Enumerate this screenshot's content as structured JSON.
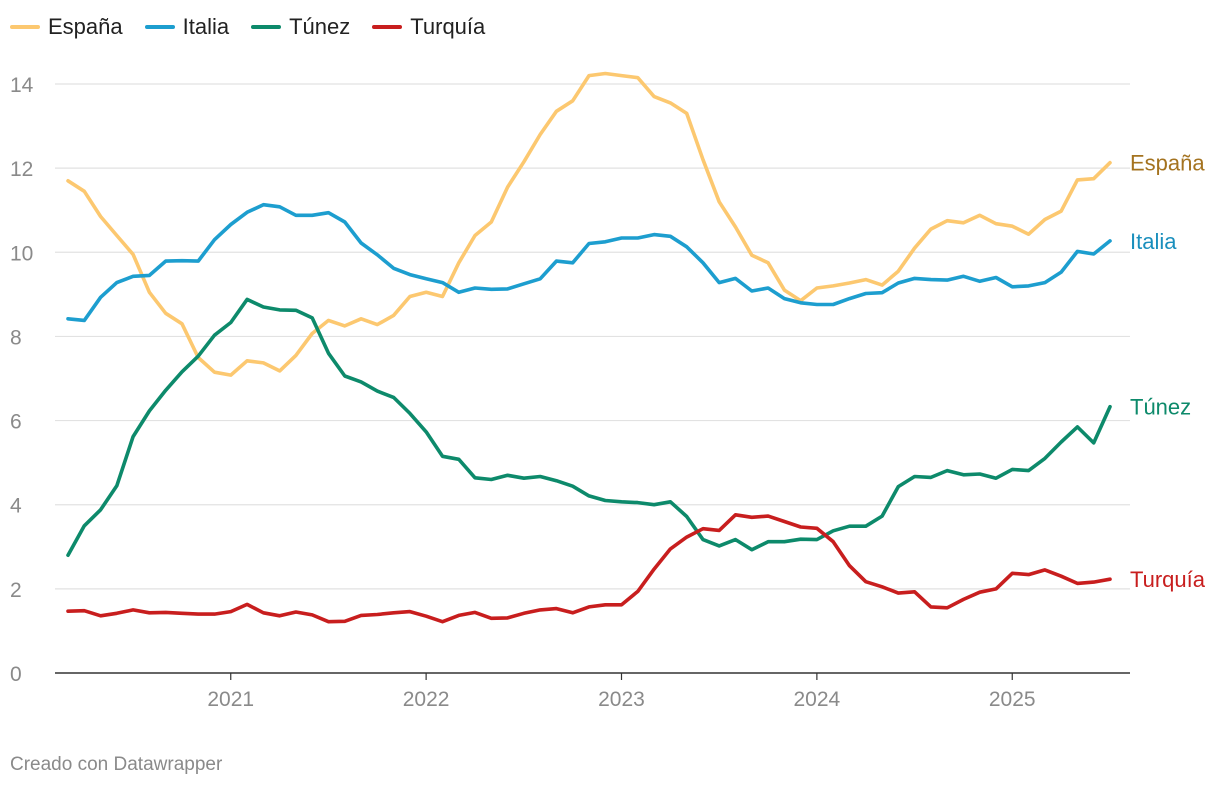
{
  "chart_data": {
    "type": "line",
    "title": "",
    "xlabel": "",
    "ylabel": "",
    "ylim": [
      0,
      14
    ],
    "y_ticks": [
      0,
      2,
      4,
      6,
      8,
      10,
      12,
      14
    ],
    "y_tick_labels": [
      "0",
      "2",
      "4",
      "6",
      "8",
      "10",
      "12",
      "14"
    ],
    "x_ticks": [
      {
        "label": "2021",
        "value": 2021.0
      },
      {
        "label": "2022",
        "value": 2022.0
      },
      {
        "label": "2023",
        "value": 2023.0
      },
      {
        "label": "2024",
        "value": 2024.0
      },
      {
        "label": "2025",
        "value": 2025.0
      }
    ],
    "x_start": 2020.167,
    "x_step": 0.0833333,
    "grid": true,
    "legend_position": "top-left",
    "series": [
      {
        "name": "España",
        "color": "#fcc870",
        "label_color": "#a47320",
        "end_label": "España",
        "values": [
          11.7,
          11.45,
          10.85,
          10.4,
          9.95,
          9.05,
          8.55,
          8.3,
          7.5,
          7.15,
          7.08,
          7.42,
          7.37,
          7.18,
          7.55,
          8.07,
          8.38,
          8.25,
          8.42,
          8.28,
          8.5,
          8.95,
          9.05,
          8.95,
          9.75,
          10.4,
          10.72,
          11.55,
          12.15,
          12.8,
          13.35,
          13.6,
          14.2,
          14.25,
          14.2,
          14.15,
          13.7,
          13.55,
          13.3,
          12.2,
          11.2,
          10.6,
          9.93,
          9.75,
          9.1,
          8.85,
          9.15,
          9.2,
          9.27,
          9.35,
          9.22,
          9.55,
          10.1,
          10.55,
          10.75,
          10.7,
          10.88,
          10.68,
          10.62,
          10.43,
          10.78,
          10.98,
          11.72,
          11.75,
          12.13
        ]
      },
      {
        "name": "Italia",
        "color": "#1d9ecf",
        "label_color": "#1a8fbd",
        "end_label": "Italia",
        "values": [
          8.42,
          8.38,
          8.93,
          9.28,
          9.43,
          9.45,
          9.79,
          9.8,
          9.79,
          10.3,
          10.66,
          10.95,
          11.13,
          11.08,
          10.88,
          10.88,
          10.94,
          10.72,
          10.22,
          9.94,
          9.62,
          9.47,
          9.37,
          9.28,
          9.05,
          9.15,
          9.12,
          9.13,
          9.25,
          9.37,
          9.79,
          9.75,
          10.21,
          10.25,
          10.34,
          10.34,
          10.42,
          10.38,
          10.13,
          9.75,
          9.28,
          9.38,
          9.08,
          9.15,
          8.9,
          8.8,
          8.76,
          8.76,
          8.9,
          9.02,
          9.04,
          9.27,
          9.38,
          9.35,
          9.34,
          9.43,
          9.31,
          9.4,
          9.18,
          9.2,
          9.28,
          9.53,
          10.02,
          9.96,
          10.27
        ]
      },
      {
        "name": "Túnez",
        "color": "#0d8a6b",
        "label_color": "#0d8a6b",
        "end_label": "Túnez",
        "values": [
          2.8,
          3.5,
          3.88,
          4.45,
          5.62,
          6.23,
          6.72,
          7.16,
          7.53,
          8.03,
          8.33,
          8.88,
          8.7,
          8.63,
          8.62,
          8.44,
          7.6,
          7.06,
          6.92,
          6.7,
          6.55,
          6.17,
          5.73,
          5.15,
          5.08,
          4.64,
          4.6,
          4.7,
          4.63,
          4.67,
          4.57,
          4.44,
          4.21,
          4.1,
          4.07,
          4.05,
          4.0,
          4.07,
          3.72,
          3.17,
          3.02,
          3.17,
          2.93,
          3.12,
          3.12,
          3.18,
          3.17,
          3.38,
          3.49,
          3.49,
          3.73,
          4.43,
          4.67,
          4.65,
          4.81,
          4.71,
          4.73,
          4.63,
          4.84,
          4.81,
          5.1,
          5.49,
          5.85,
          5.47,
          6.33
        ]
      },
      {
        "name": "Turquía",
        "color": "#c81e1e",
        "label_color": "#c81e1e",
        "end_label": "Turquía",
        "values": [
          1.47,
          1.48,
          1.36,
          1.42,
          1.5,
          1.43,
          1.44,
          1.42,
          1.4,
          1.4,
          1.46,
          1.63,
          1.43,
          1.36,
          1.45,
          1.38,
          1.22,
          1.23,
          1.37,
          1.39,
          1.43,
          1.46,
          1.35,
          1.22,
          1.37,
          1.44,
          1.3,
          1.31,
          1.42,
          1.5,
          1.53,
          1.43,
          1.57,
          1.62,
          1.62,
          1.94,
          2.47,
          2.95,
          3.23,
          3.43,
          3.39,
          3.76,
          3.7,
          3.73,
          3.6,
          3.47,
          3.44,
          3.12,
          2.55,
          2.17,
          2.05,
          1.9,
          1.93,
          1.57,
          1.55,
          1.75,
          1.92,
          2.0,
          2.37,
          2.34,
          2.45,
          2.3,
          2.13,
          2.16,
          2.23
        ]
      }
    ]
  },
  "credit": "Creado con Datawrapper"
}
